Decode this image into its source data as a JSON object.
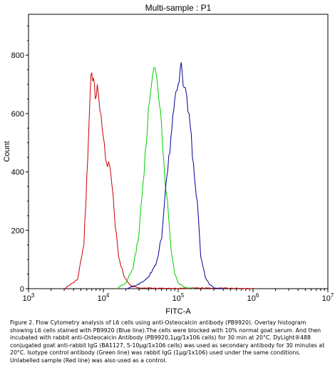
{
  "chart_data": {
    "type": "line",
    "title": "Multi-sample : P1",
    "xlabel": "FITC-A",
    "ylabel": "Count",
    "x_scale": "log",
    "xlim": [
      1000,
      10000000
    ],
    "ylim": [
      0,
      940
    ],
    "x_ticks": [
      {
        "value": 1000,
        "base": "10",
        "exp": "3"
      },
      {
        "value": 10000,
        "base": "10",
        "exp": "4"
      },
      {
        "value": 100000,
        "base": "10",
        "exp": "5"
      },
      {
        "value": 1000000,
        "base": "10",
        "exp": "6"
      },
      {
        "value": 10000000,
        "base": "10",
        "exp": "7"
      }
    ],
    "y_ticks": [
      "0",
      "200",
      "400",
      "600",
      "800"
    ],
    "grid": false,
    "legend": "none",
    "series": [
      {
        "color": "#cc0000",
        "x": [
          3000,
          4500,
          5500,
          6200,
          6700,
          7000,
          7400,
          7800,
          8300,
          9000,
          10000,
          11000,
          12500,
          14000,
          16000,
          19000,
          23000,
          30000,
          45000,
          80000,
          200000,
          1000000
        ],
        "y": [
          0,
          30,
          150,
          450,
          680,
          740,
          720,
          650,
          700,
          610,
          520,
          430,
          400,
          260,
          110,
          40,
          10,
          3,
          2,
          1,
          2,
          1
        ]
      },
      {
        "color": "#00cc00",
        "x": [
          15000,
          20000,
          25000,
          30000,
          35000,
          40000,
          44000,
          47000,
          50000,
          55000,
          60000,
          66000,
          72000,
          80000,
          90000,
          100000,
          120000,
          160000
        ],
        "y": [
          0,
          20,
          70,
          190,
          390,
          620,
          700,
          755,
          745,
          650,
          560,
          380,
          300,
          140,
          50,
          20,
          5,
          0
        ]
      },
      {
        "color": "#000099",
        "x": [
          20000,
          30000,
          40000,
          50000,
          60000,
          70000,
          80000,
          90000,
          100000,
          110000,
          120000,
          130000,
          140000,
          160000,
          180000,
          200000,
          230000,
          260000,
          300000,
          400000
        ],
        "y": [
          0,
          15,
          40,
          80,
          170,
          380,
          520,
          650,
          700,
          775,
          690,
          660,
          600,
          430,
          300,
          110,
          40,
          15,
          3,
          0
        ]
      }
    ]
  },
  "caption": "Figure 2. Flow Cytometry analysis of L6 cells using anti-Osteocalcin antibody (PB9920). Overlay histogram showing L6 cells stained with PB9920 (Blue line).The cells were blocked with 10% normal goat serum. And then incubated with rabbit anti-Osteocalcin Antibody (PB9920,1μg/1x106 cells) for 30 min at 20°C. DyLight®488 conjugated goat anti-rabbit IgG (BA1127, 5-10μg/1x106 cells) was used as secondary antibody for 30 minutes at 20°C. Isotype control antibody (Green line) was rabbit IgG (1μg/1x106) used under the same conditions. Unlabelled sample (Red line) was also used as a control."
}
